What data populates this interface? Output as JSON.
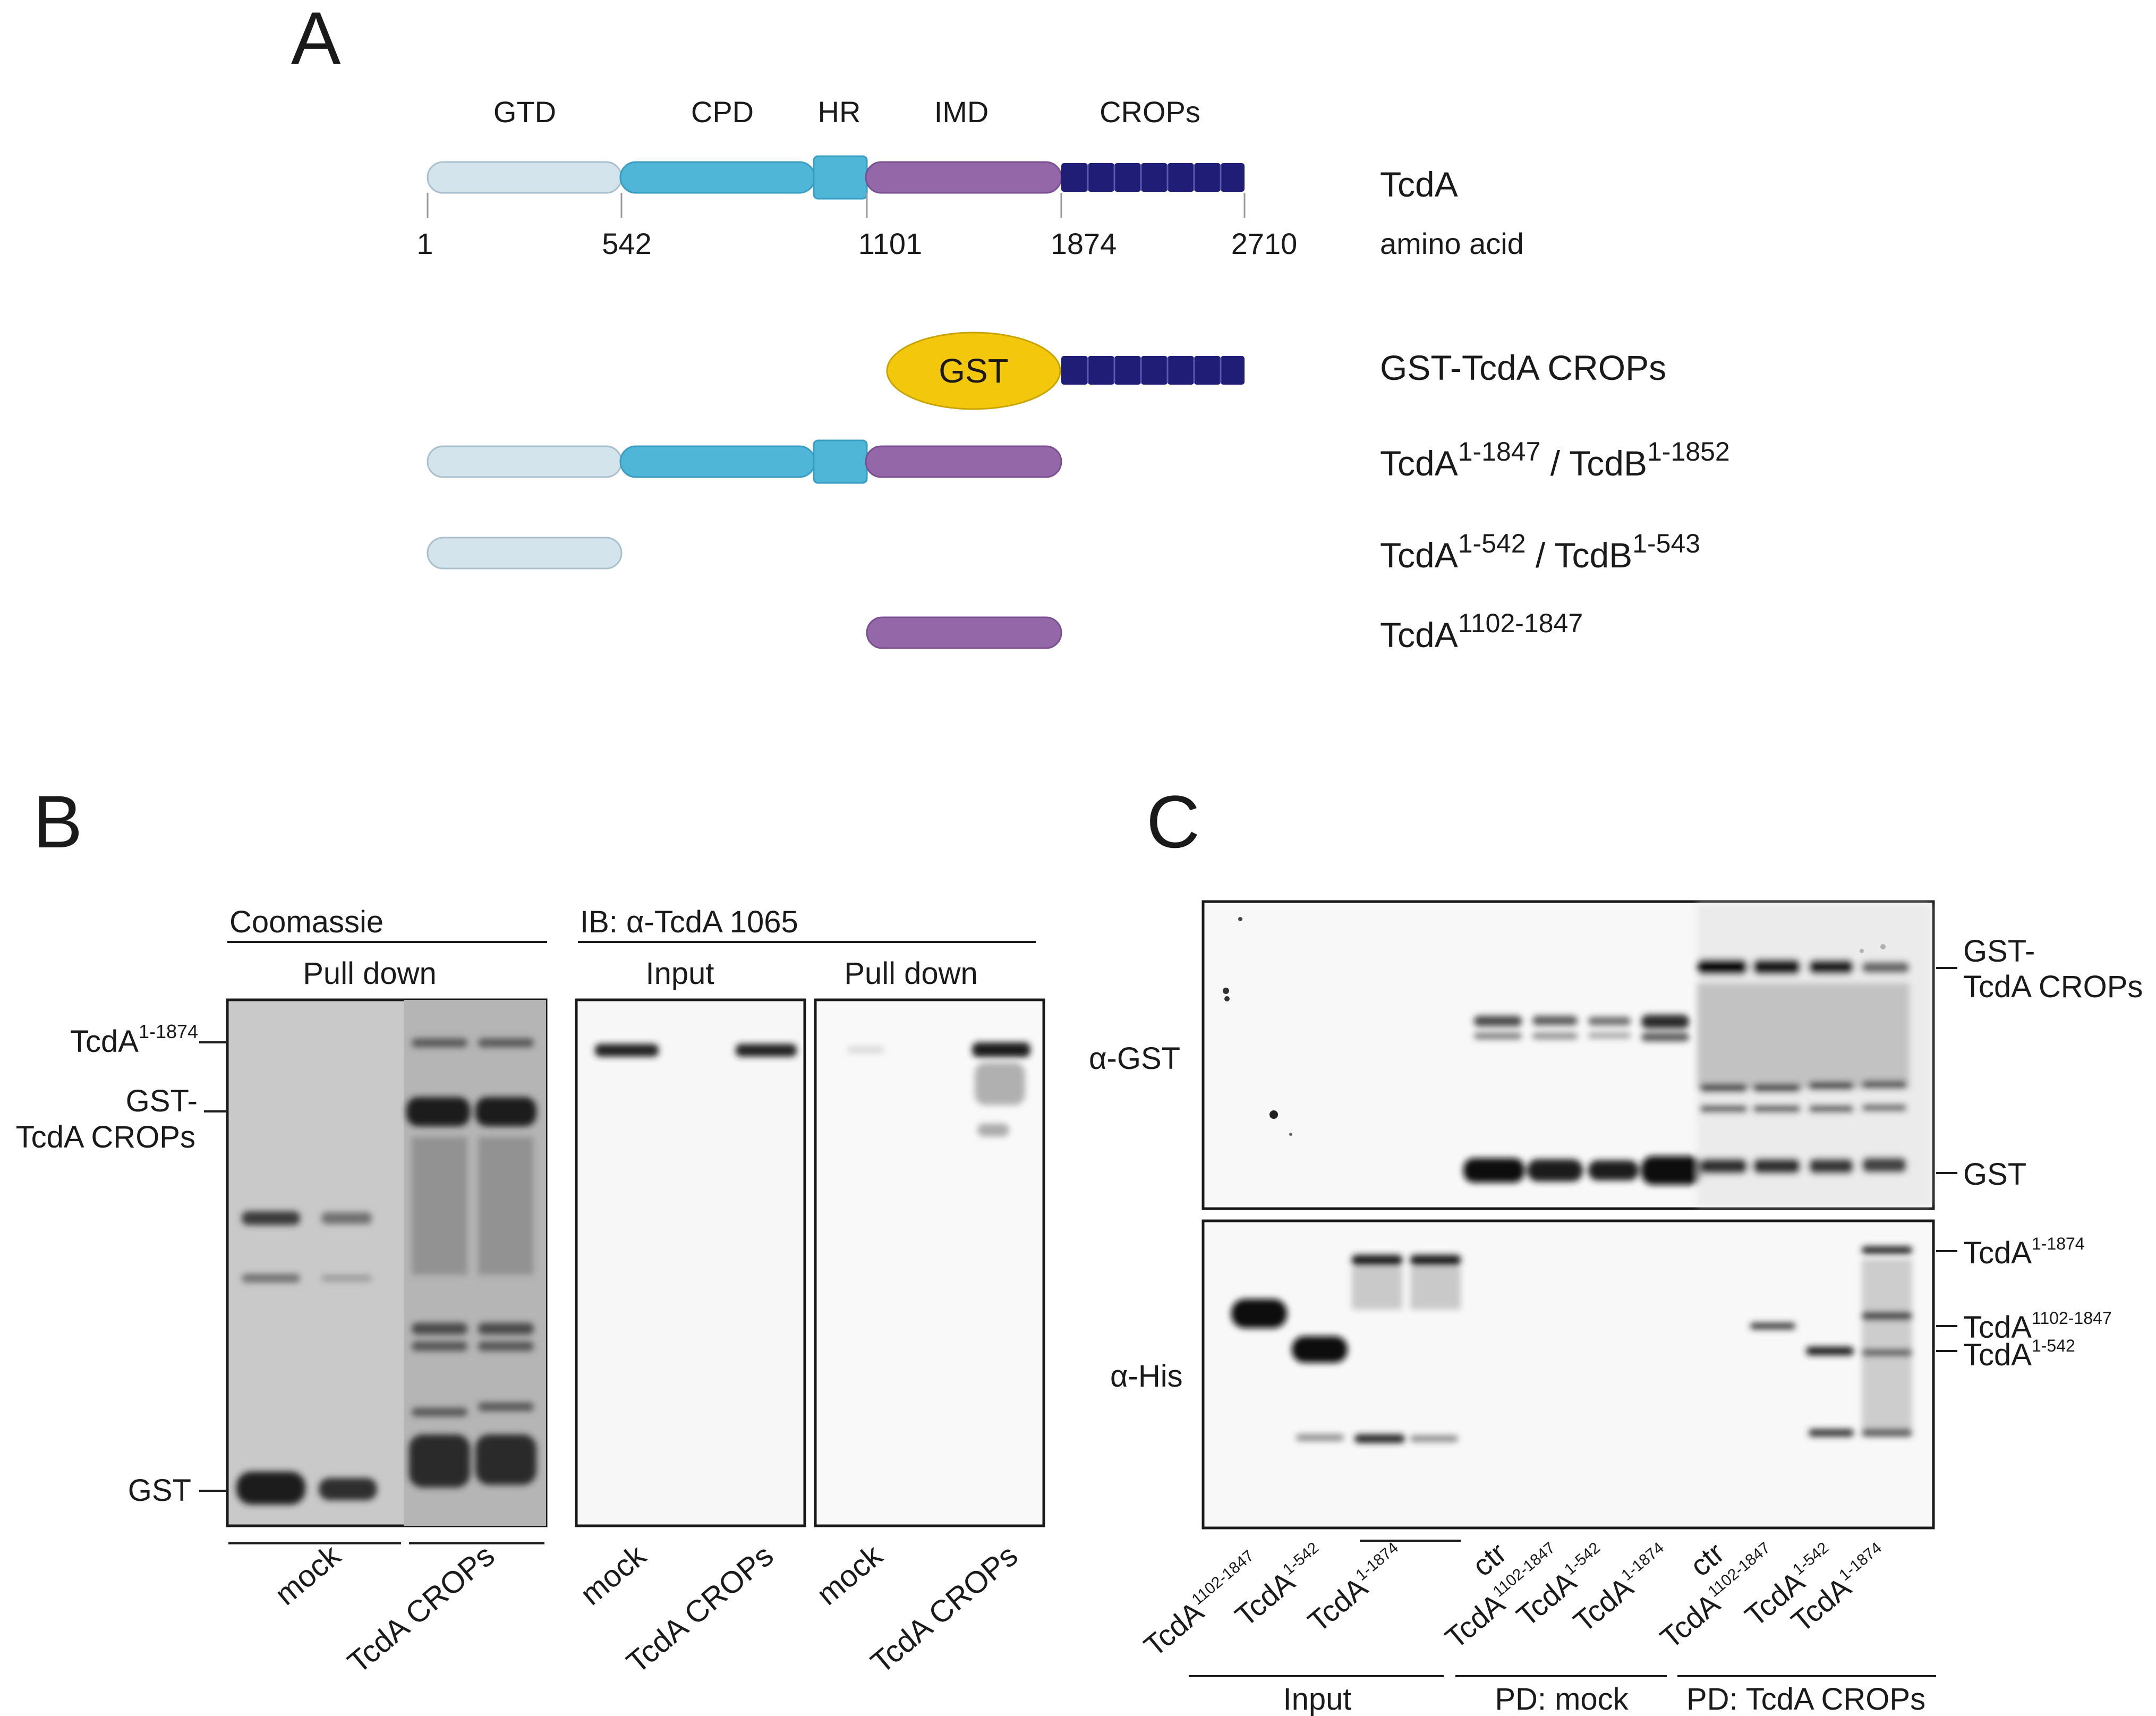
{
  "panel_a": {
    "letter": "A",
    "domains": {
      "gtd": "GTD",
      "cpd": "CPD",
      "hr": "HR",
      "imd": "IMD",
      "crops": "CROPs"
    },
    "positions": [
      "1",
      "542",
      "1101",
      "1874",
      "2710"
    ],
    "positions_label": "amino acid",
    "constructs": {
      "full": "TcdA",
      "gst": "GST-TcdA CROPs",
      "gst_tag": "GST",
      "c1847": {
        "a": "TcdA",
        "a_sup": "1-1847",
        "sep": " / ",
        "b": "TcdB",
        "b_sup": "1-1852"
      },
      "c542": {
        "a": "TcdA",
        "a_sup": "1-542",
        "sep": " / ",
        "b": "TcdB",
        "b_sup": "1-543"
      },
      "c1102": {
        "a": "TcdA",
        "a_sup": "1102-1847"
      }
    },
    "colors": {
      "gtd": "#d3e4ec",
      "cpd": "#4fb6d8",
      "hr": "#4fb6d8",
      "imd": "#9467a8",
      "crops": "#1f1d75",
      "gst": "#f3c80c"
    }
  },
  "panel_b": {
    "letter": "B",
    "coomassie": "Coomassie",
    "ib": "IB: α-TcdA 1065",
    "pull_down": "Pull down",
    "input": "Input",
    "markers": {
      "tcda": {
        "main": "TcdA",
        "sup": "1-1874"
      },
      "gst_crops_1": "GST-",
      "gst_crops_2": "TcdA CROPs",
      "gst": "GST"
    },
    "lanes": {
      "mock": "mock",
      "crops": "TcdA CROPs"
    }
  },
  "panel_c": {
    "letter": "C",
    "blots": {
      "gst": "α-GST",
      "his": "α-His"
    },
    "right_labels": {
      "gst_crops_1": "GST-",
      "gst_crops_2": "TcdA CROPs",
      "gst": "GST",
      "t1874": {
        "main": "TcdA",
        "sup": "1-1874"
      },
      "t1102": {
        "main": "TcdA",
        "sup": "1102-1847"
      },
      "t542": {
        "main": "TcdA",
        "sup": "1-542"
      }
    },
    "lanes": {
      "tcda": "TcdA",
      "s1102": "1102-1847",
      "s542": "1-542",
      "s1874": "1-1874",
      "ctr": "ctr"
    },
    "groups": {
      "input": "Input",
      "pd_mock": "PD: mock",
      "pd_crops": "PD: TcdA CROPs"
    }
  }
}
